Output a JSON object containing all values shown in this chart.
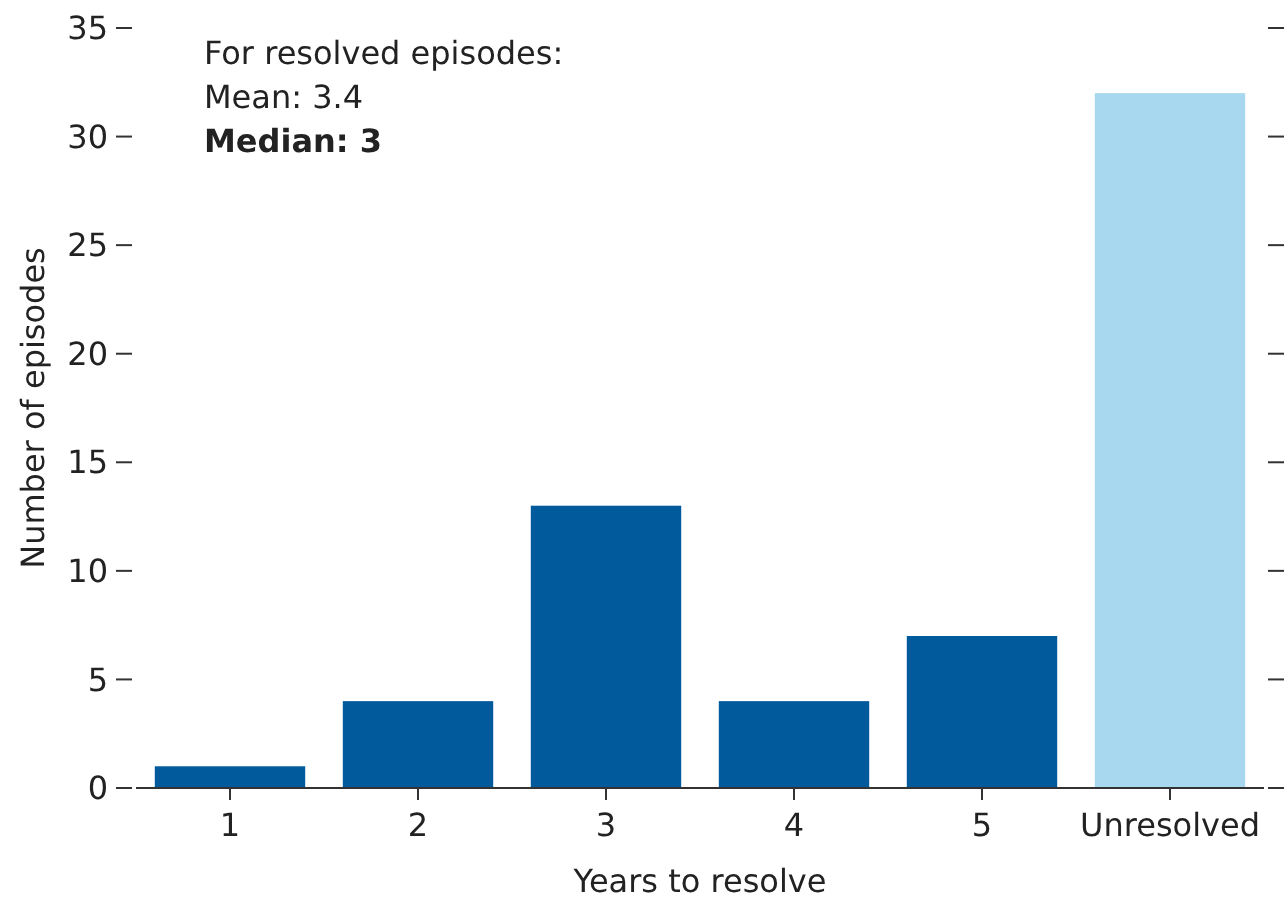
{
  "chart_data": {
    "type": "bar",
    "xlabel": "Years to resolve",
    "ylabel": "Number of episodes",
    "categories": [
      "1",
      "2",
      "3",
      "4",
      "5",
      "Unresolved"
    ],
    "values": [
      1,
      4,
      13,
      4,
      7,
      32
    ],
    "colors": [
      "#005a9c",
      "#005a9c",
      "#005a9c",
      "#005a9c",
      "#005a9c",
      "#a8d8f0"
    ],
    "ylim": [
      0,
      35
    ],
    "yticks": [
      0,
      5,
      10,
      15,
      20,
      25,
      30,
      35
    ],
    "grid": false,
    "annotations": [
      "For resolved episodes:",
      "Mean: 3.4",
      "Median: 3"
    ]
  }
}
